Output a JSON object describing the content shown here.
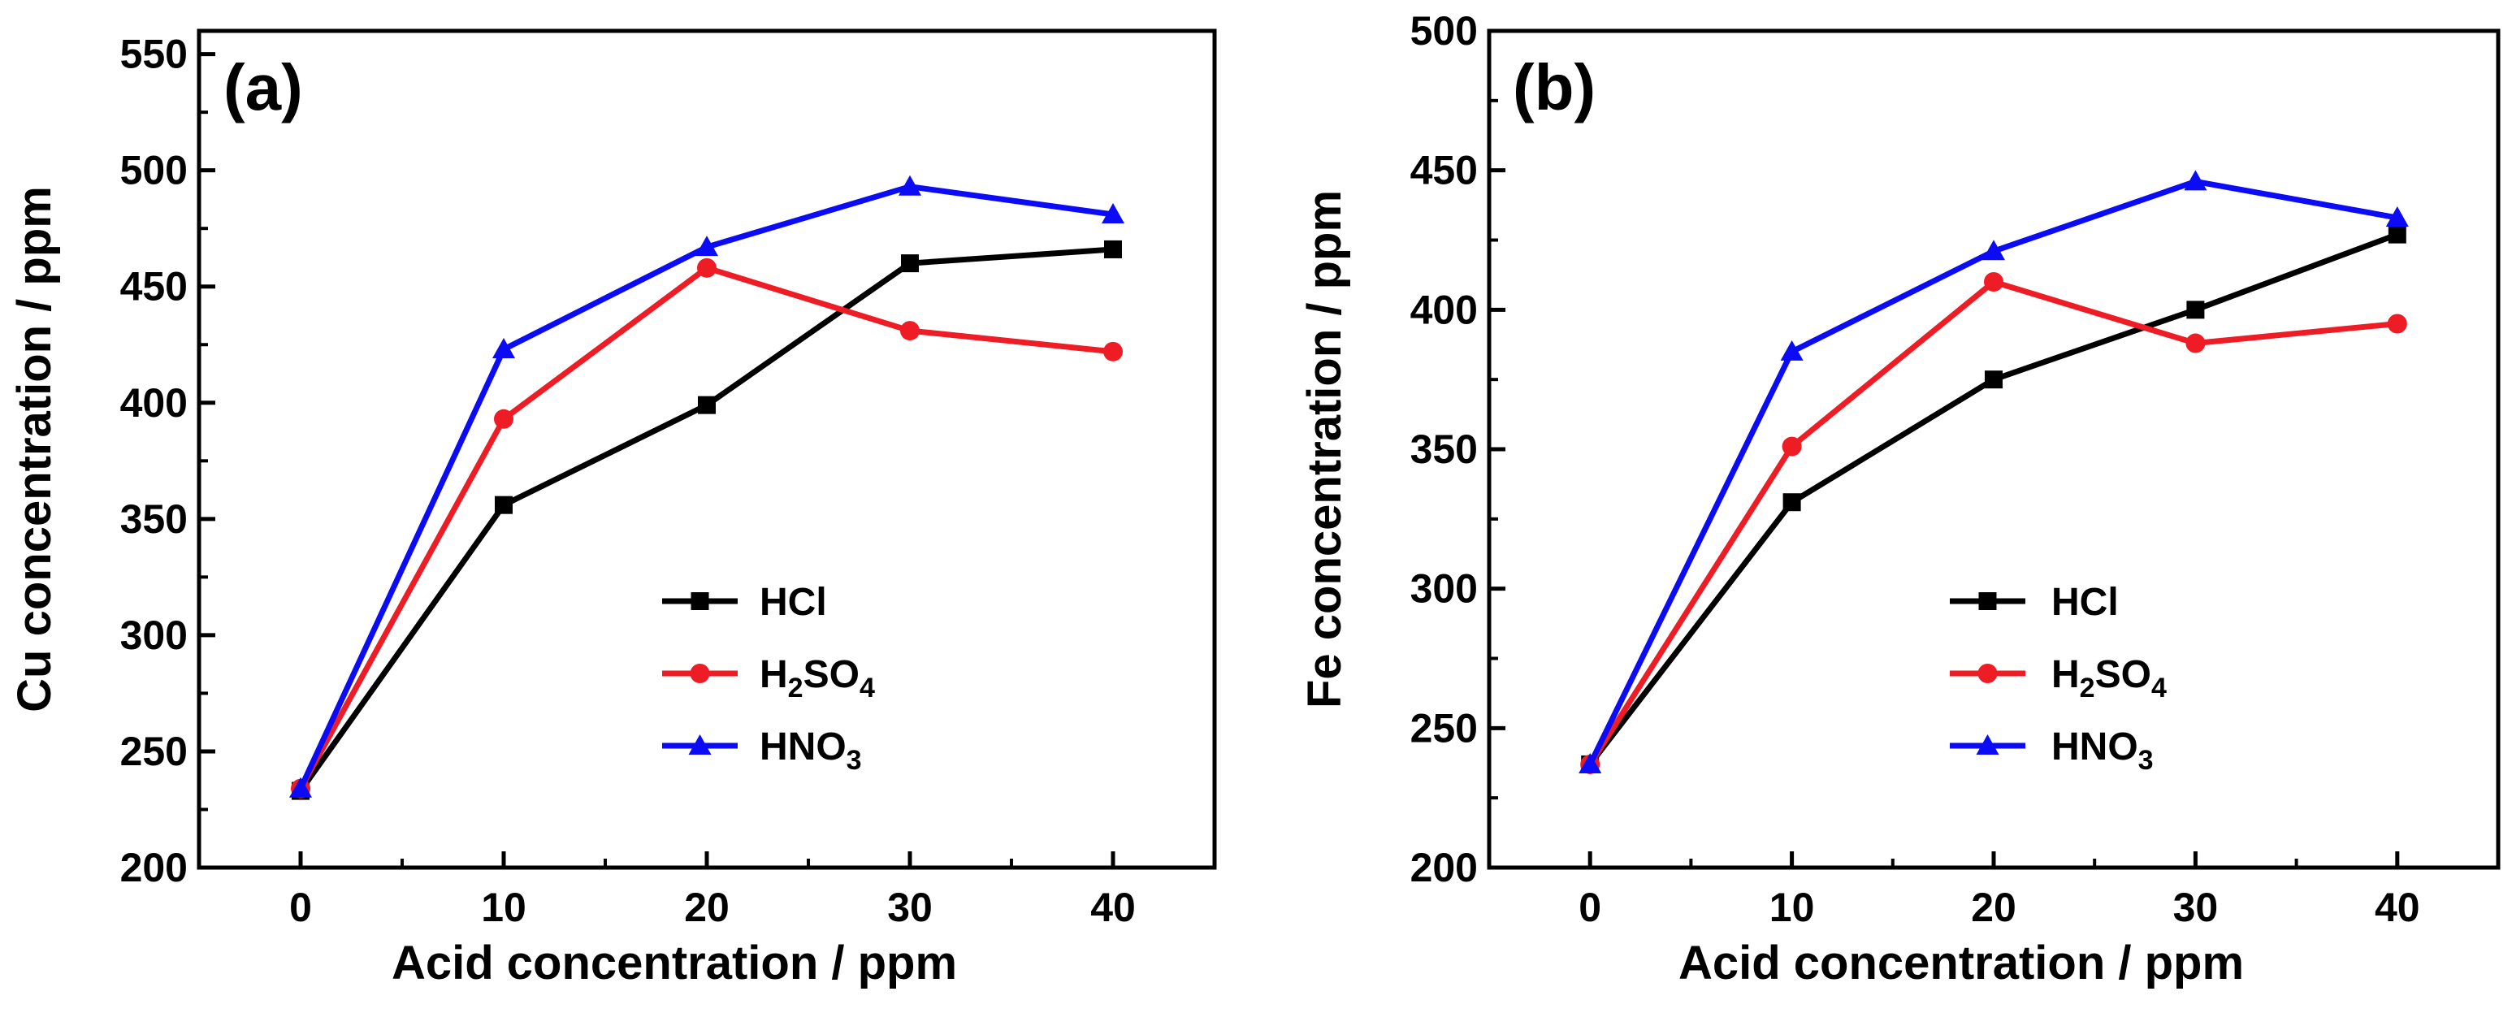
{
  "figure": {
    "colors": {
      "HCl": "#000000",
      "H2SO4": "#ee1c24",
      "HNO3": "#0b0bf5"
    }
  },
  "chart_data": [
    {
      "type": "line",
      "panel_label": "(a)",
      "title": "",
      "xlabel": "Acid concentration / ppm",
      "ylabel": "Cu concentration / ppm",
      "x": [
        0,
        10,
        20,
        30,
        40
      ],
      "x_ticks": [
        "0",
        "10",
        "20",
        "30",
        "40"
      ],
      "y_ticks": [
        "200",
        "250",
        "300",
        "350",
        "400",
        "450",
        "500",
        "550"
      ],
      "xlim": [
        -5,
        45
      ],
      "ylim": [
        200,
        560
      ],
      "grid": false,
      "legend_position": "lower-right",
      "series": [
        {
          "name": "HCl",
          "label_main": "HCl",
          "label_sub": "",
          "label_tail": "",
          "marker": "square",
          "values": [
            233,
            356,
            399,
            460,
            466
          ]
        },
        {
          "name": "H2SO4",
          "label_main": "H",
          "label_sub": "2",
          "label_tail": "SO",
          "label_sub2": "4",
          "marker": "circle",
          "values": [
            234,
            393,
            458,
            431,
            422
          ]
        },
        {
          "name": "HNO3",
          "label_main": "HNO",
          "label_sub": "3",
          "label_tail": "",
          "marker": "triangle",
          "values": [
            234,
            423,
            467,
            493,
            481
          ]
        }
      ]
    },
    {
      "type": "line",
      "panel_label": "(b)",
      "title": "",
      "xlabel": "Acid concentration / ppm",
      "ylabel": "Fe concentration / ppm",
      "x": [
        0,
        10,
        20,
        30,
        40
      ],
      "x_ticks": [
        "0",
        "10",
        "20",
        "30",
        "40"
      ],
      "y_ticks": [
        "200",
        "250",
        "300",
        "350",
        "400",
        "450",
        "500"
      ],
      "xlim": [
        -5,
        45
      ],
      "ylim": [
        200,
        500
      ],
      "grid": false,
      "legend_position": "lower-right",
      "series": [
        {
          "name": "HCl",
          "label_main": "HCl",
          "label_sub": "",
          "label_tail": "",
          "marker": "square",
          "values": [
            237,
            331,
            375,
            400,
            427
          ]
        },
        {
          "name": "H2SO4",
          "label_main": "H",
          "label_sub": "2",
          "label_tail": "SO",
          "label_sub2": "4",
          "marker": "circle",
          "values": [
            237,
            351,
            410,
            388,
            395
          ]
        },
        {
          "name": "HNO3",
          "label_main": "HNO",
          "label_sub": "3",
          "label_tail": "",
          "marker": "triangle",
          "values": [
            237,
            385,
            421,
            446,
            433
          ]
        }
      ]
    }
  ]
}
